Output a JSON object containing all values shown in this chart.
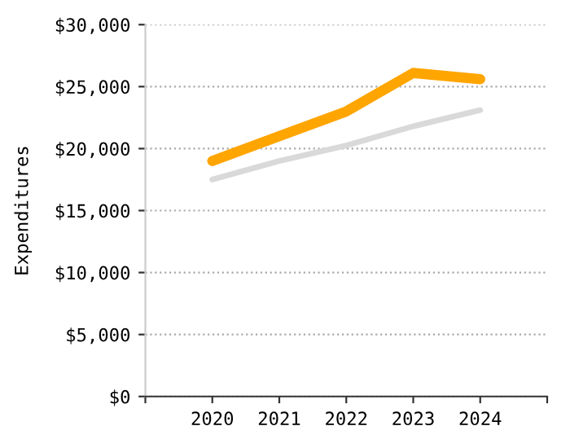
{
  "chart_data": {
    "type": "line",
    "ylabel": "Expenditures",
    "x": [
      2020,
      2021,
      2022,
      2023,
      2024
    ],
    "series": [
      {
        "color": "#d9d9d9",
        "values": [
          17500,
          19000,
          20250,
          21800,
          23100
        ]
      },
      {
        "color": "#ffa500",
        "values": [
          19000,
          21000,
          23000,
          26100,
          25600
        ]
      }
    ],
    "xlim": [
      2019,
      2025
    ],
    "xticks": [
      {
        "value": 2019,
        "label": null
      },
      2020,
      2021,
      2022,
      2023,
      2024,
      {
        "value": 2025,
        "label": null
      }
    ],
    "ylim": [
      0,
      30000
    ],
    "yticks": [
      {
        "value": 0,
        "label": "$0"
      },
      {
        "value": 5000,
        "label": "$5,000"
      },
      {
        "value": 10000,
        "label": "$10,000"
      },
      {
        "value": 15000,
        "label": "$15,000"
      },
      {
        "value": 20000,
        "label": "$20,000"
      },
      {
        "value": 25000,
        "label": "$25,000"
      },
      {
        "value": 30000,
        "label": "$30,000"
      }
    ],
    "grid": "y",
    "marker": "none",
    "line_style": "solid"
  }
}
